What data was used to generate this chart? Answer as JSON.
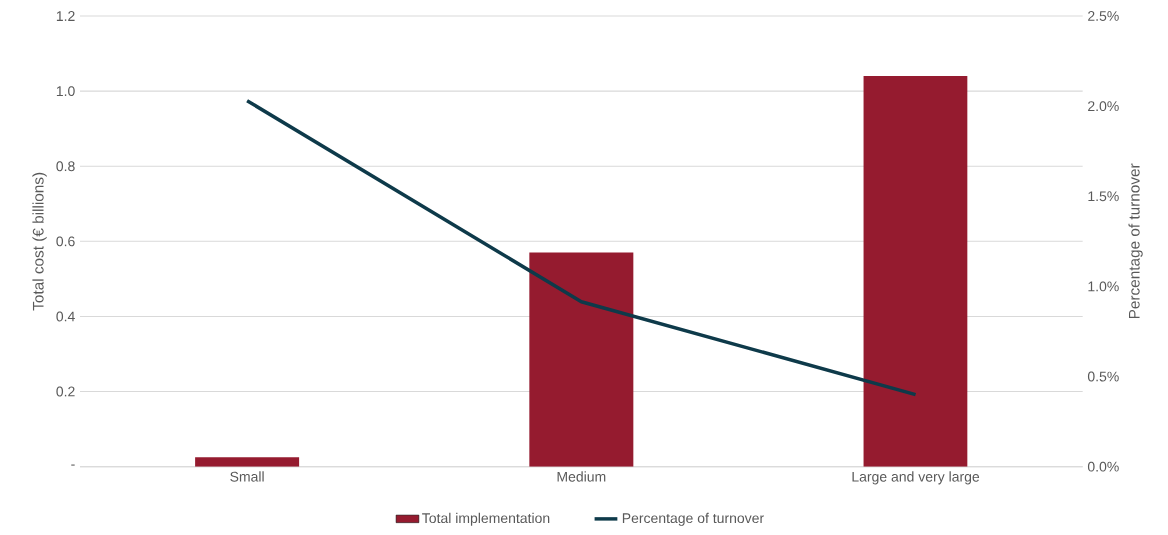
{
  "chart_data": {
    "type": "bar",
    "categories": [
      "Small",
      "Medium",
      "Large and very large"
    ],
    "ylabel": "Total cost (€ billions)",
    "y2label": "Percentage of turnover",
    "series": [
      {
        "name": "Total implementation",
        "color": "#951b2f",
        "values": [
          0.025,
          0.57,
          1.04
        ]
      },
      {
        "name": "Percentage of turnover",
        "type": "line",
        "axis": "y2",
        "color": "#0e3a4a",
        "values": [
          2.03,
          0.915,
          0.4
        ],
        "marker": "none",
        "line_style": "solid"
      }
    ],
    "ylim": [
      0,
      1.2
    ],
    "yticks": [
      {
        "value": 0,
        "label": "-"
      },
      {
        "value": 0.2,
        "label": "0.2"
      },
      {
        "value": 0.4,
        "label": "0.4"
      },
      {
        "value": 0.6,
        "label": "0.6"
      },
      {
        "value": 0.8,
        "label": "0.8"
      },
      {
        "value": 1.0,
        "label": "1.0"
      },
      {
        "value": 1.2,
        "label": "1.2"
      }
    ],
    "y2lim": [
      0,
      2.5
    ],
    "y2ticks": [
      {
        "value": 0,
        "label": "0.0%"
      },
      {
        "value": 0.5,
        "label": "0.5%"
      },
      {
        "value": 1.0,
        "label": "1.0%"
      },
      {
        "value": 1.5,
        "label": "1.5%"
      },
      {
        "value": 2.0,
        "label": "2.0%"
      },
      {
        "value": 2.5,
        "label": "2.5%"
      }
    ],
    "grid": "y",
    "legend": "bottom"
  }
}
